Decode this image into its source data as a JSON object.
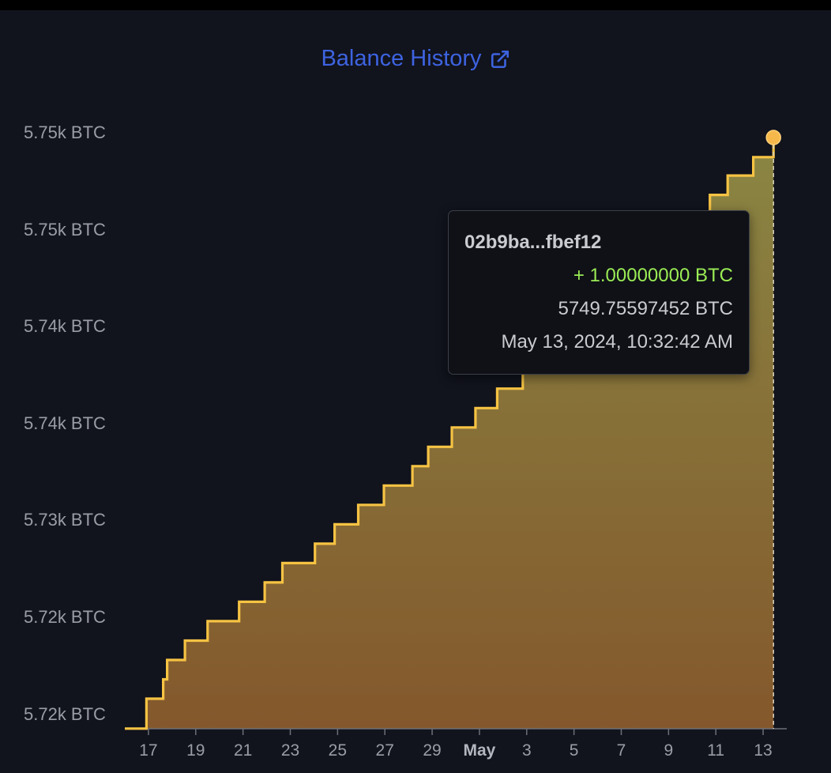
{
  "title": "Balance History",
  "icons": {
    "external_link": "external-link-icon"
  },
  "colors": {
    "background": "#11131d",
    "title": "#3d63e0",
    "line": "#f6c343",
    "fill_top": "#8a8643",
    "fill_bottom": "#84582c",
    "positive": "#9bec55",
    "dot": "#f7b84b"
  },
  "tooltip": {
    "txid": "02b9ba...fbef12",
    "amount": "+ 1.00000000 BTC",
    "balance": "5749.75597452 BTC",
    "timestamp": "May 13, 2024, 10:32:42 AM"
  },
  "chart_data": {
    "type": "area",
    "step": true,
    "y_unit": "BTC",
    "ylim": [
      5719.25,
      5750.25
    ],
    "y_tick_values": [
      5750,
      5745,
      5740,
      5735,
      5730,
      5725,
      5720
    ],
    "y_tick_labels": [
      "5.75k BTC",
      "5.75k BTC",
      "5.74k BTC",
      "5.74k BTC",
      "5.73k BTC",
      "5.72k BTC",
      "5.72k BTC"
    ],
    "x_range": [
      "2024-04-16",
      "2024-05-14"
    ],
    "x_ticks": [
      {
        "date": "2024-04-17",
        "label": "17"
      },
      {
        "date": "2024-04-19",
        "label": "19"
      },
      {
        "date": "2024-04-21",
        "label": "21"
      },
      {
        "date": "2024-04-23",
        "label": "23"
      },
      {
        "date": "2024-04-25",
        "label": "25"
      },
      {
        "date": "2024-04-27",
        "label": "27"
      },
      {
        "date": "2024-04-29",
        "label": "29"
      },
      {
        "date": "2024-05-01",
        "label": "May",
        "bold": true
      },
      {
        "date": "2024-05-03",
        "label": "3"
      },
      {
        "date": "2024-05-05",
        "label": "5"
      },
      {
        "date": "2024-05-07",
        "label": "7"
      },
      {
        "date": "2024-05-09",
        "label": "9"
      },
      {
        "date": "2024-05-11",
        "label": "11"
      },
      {
        "date": "2024-05-13",
        "label": "13"
      }
    ],
    "grid": false,
    "series": [
      {
        "points": [
          {
            "x": "2024-04-16 18:00",
            "y": 5719.26
          },
          {
            "x": "2024-04-16 22:00",
            "y": 5720.8
          },
          {
            "x": "2024-04-17 15:00",
            "y": 5721.8
          },
          {
            "x": "2024-04-17 19:00",
            "y": 5722.8
          },
          {
            "x": "2024-04-18 13:00",
            "y": 5723.8
          },
          {
            "x": "2024-04-19 12:00",
            "y": 5724.8
          },
          {
            "x": "2024-04-20 20:00",
            "y": 5725.8
          },
          {
            "x": "2024-04-21 22:00",
            "y": 5726.8
          },
          {
            "x": "2024-04-22 16:00",
            "y": 5727.8
          },
          {
            "x": "2024-04-24 01:00",
            "y": 5728.8
          },
          {
            "x": "2024-04-24 21:00",
            "y": 5729.8
          },
          {
            "x": "2024-04-25 21:00",
            "y": 5730.8
          },
          {
            "x": "2024-04-26 23:00",
            "y": 5731.8
          },
          {
            "x": "2024-04-28 04:00",
            "y": 5732.8
          },
          {
            "x": "2024-04-28 20:00",
            "y": 5733.8
          },
          {
            "x": "2024-04-29 20:00",
            "y": 5734.8
          },
          {
            "x": "2024-04-30 20:00",
            "y": 5735.8
          },
          {
            "x": "2024-05-01 18:00",
            "y": 5736.8
          },
          {
            "x": "2024-05-02 20:00",
            "y": 5737.8
          },
          {
            "x": "2024-05-04 02:00",
            "y": 5738.8
          },
          {
            "x": "2024-05-05 06:00",
            "y": 5739.8
          },
          {
            "x": "2024-05-06 12:00",
            "y": 5740.8
          },
          {
            "x": "2024-05-07 16:00",
            "y": 5741.8
          },
          {
            "x": "2024-05-08 16:00",
            "y": 5742.8
          },
          {
            "x": "2024-05-09 16:00",
            "y": 5743.8
          },
          {
            "x": "2024-05-10 18:00",
            "y": 5746.8
          },
          {
            "x": "2024-05-11 12:00",
            "y": 5747.8
          },
          {
            "x": "2024-05-12 14:00",
            "y": 5748.75
          },
          {
            "x": "2024-05-13 10:32",
            "y": 5749.76
          }
        ]
      }
    ],
    "highlight": {
      "x": "2024-05-13 10:32",
      "y": 5749.76
    }
  }
}
